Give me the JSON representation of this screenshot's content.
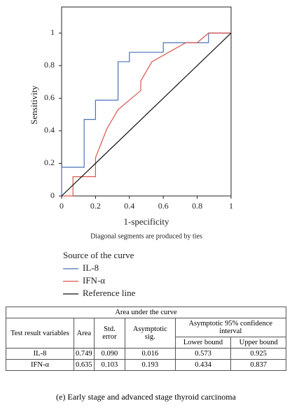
{
  "chart_data": {
    "type": "line",
    "xlabel": "1-specificity",
    "ylabel": "Sensitivity",
    "note": "Diagonal segments are produced by ties",
    "legend_title": "Source of the curve",
    "xlim": [
      0,
      1
    ],
    "ylim": [
      0,
      1.16
    ],
    "xticks": [
      0,
      0.2,
      0.4,
      0.6,
      0.8,
      1
    ],
    "yticks": [
      0,
      0.2,
      0.4,
      0.6,
      0.8,
      1
    ],
    "series": [
      {
        "name": "IL-8",
        "color": "#4a72b8",
        "x": [
          0,
          0,
          0.133,
          0.133,
          0.2,
          0.2,
          0.333,
          0.333,
          0.4,
          0.4,
          0.6,
          0.6,
          0.867,
          0.867,
          1
        ],
        "values": [
          0,
          0.176,
          0.176,
          0.47,
          0.47,
          0.588,
          0.588,
          0.824,
          0.824,
          0.882,
          0.882,
          0.941,
          0.941,
          1,
          1
        ]
      },
      {
        "name": "IFN-α",
        "color": "#d9534f",
        "x": [
          0,
          0.067,
          0.067,
          0.2,
          0.2,
          0.267,
          0.333,
          0.467,
          0.467,
          0.533,
          0.733,
          0.8,
          0.867,
          1
        ],
        "values": [
          0,
          0,
          0.118,
          0.118,
          0.235,
          0.412,
          0.53,
          0.647,
          0.706,
          0.824,
          0.941,
          0.941,
          1,
          1
        ]
      },
      {
        "name": "Reference line",
        "color": "#111111",
        "x": [
          0,
          1
        ],
        "values": [
          0,
          1
        ]
      }
    ]
  },
  "table": {
    "title": "Area under the curve",
    "headers": [
      "Test result variables",
      "Area",
      "Std. error",
      "Asymptotic sig.",
      "Asymptotic 95% confidence interval"
    ],
    "subheaders": [
      "Lower bound",
      "Upper bound"
    ],
    "rows": [
      [
        "IL-8",
        "0.749",
        "0.090",
        "0.016",
        "0.573",
        "0.925"
      ],
      [
        "IFN-α",
        "0.635",
        "0.103",
        "0.193",
        "0.434",
        "0.837"
      ]
    ]
  },
  "caption": "(e) Early stage and advanced stage thyroid carcinoma"
}
